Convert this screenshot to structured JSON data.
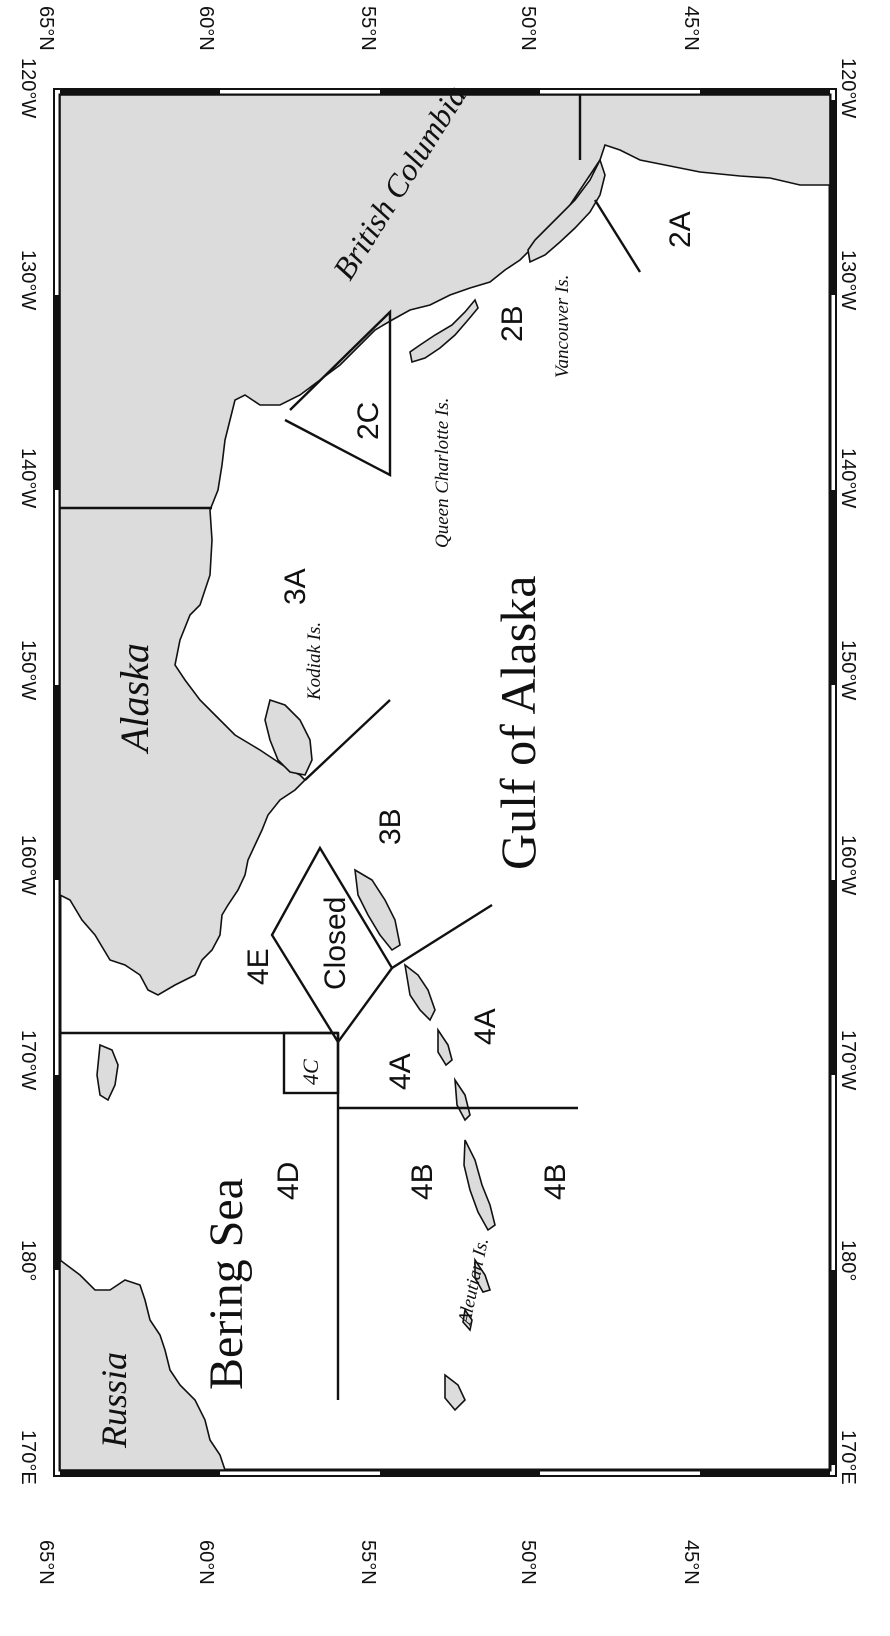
{
  "map": {
    "lat_labels": [
      "65°N",
      "60°N",
      "55°N",
      "50°N",
      "45°N"
    ],
    "lon_labels": [
      "170°E",
      "180°",
      "170°W",
      "160°W",
      "150°W",
      "140°W",
      "130°W",
      "120°W"
    ],
    "place_labels": {
      "british_columbia": "British Columbia",
      "vancouver": "Vancouver Is.",
      "queen_charlotte": "Queen Charlotte Is.",
      "kodiak": "Kodiak Is.",
      "alaska": "Alaska",
      "gulf": "Gulf of Alaska",
      "aleutian": "Aleutian Is.",
      "bering": "Bering Sea",
      "russia": "Russia"
    },
    "area_labels": {
      "a2A": "2A",
      "a2B": "2B",
      "a2C": "2C",
      "a3A": "3A",
      "a3B": "3B",
      "a4A_north": "4A",
      "a4A_south": "4A",
      "a4B_north": "4B",
      "a4B_south": "4B",
      "a4C": "4C",
      "a4D": "4D",
      "a4E": "4E",
      "closed": "Closed"
    }
  }
}
